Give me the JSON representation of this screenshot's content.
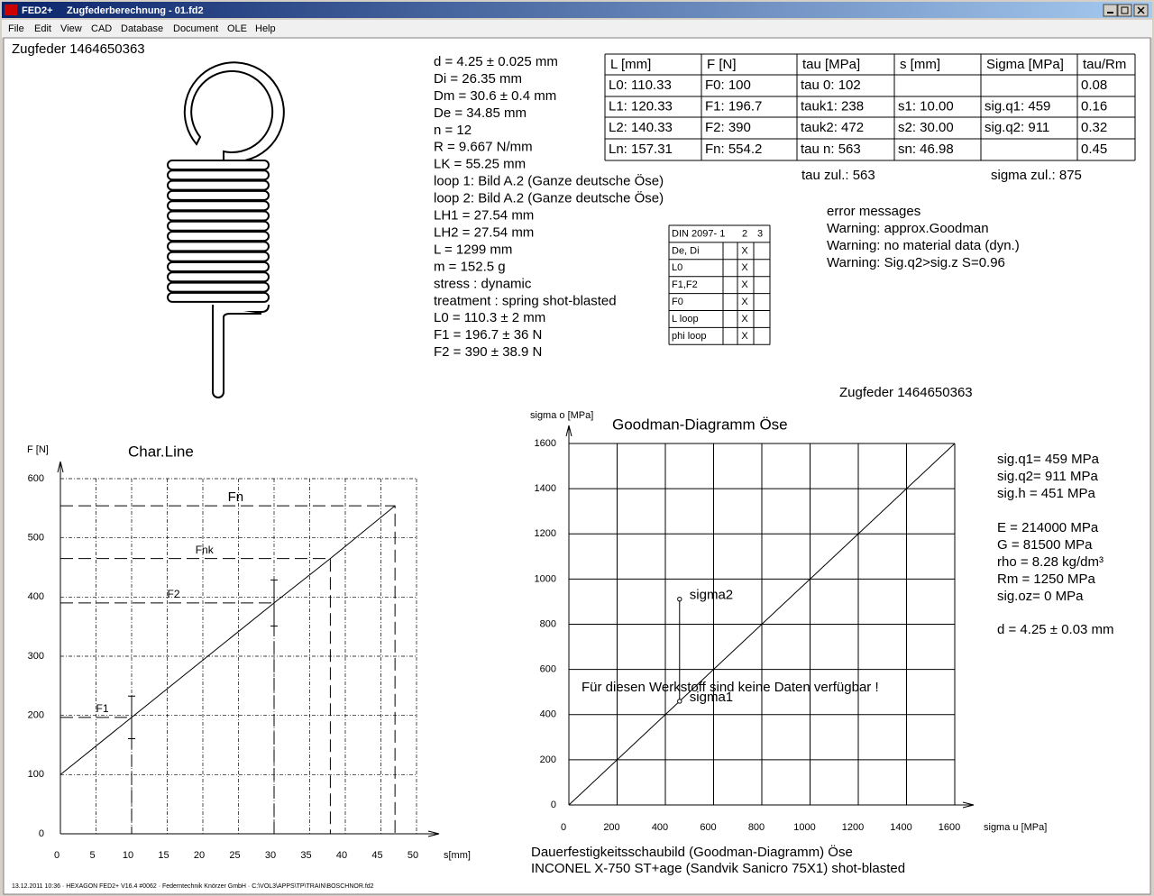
{
  "window": {
    "app": "FED2+",
    "title": "Zugfederberechnung  -  01.fd2"
  },
  "menu": [
    "File",
    "Edit",
    "View",
    "CAD",
    "Database",
    "Document",
    "OLE",
    "Help"
  ],
  "spring_label": "Zugfeder  1464650363",
  "parameters": [
    "d = 4.25 ± 0.025 mm",
    "Di = 26.35 mm",
    "Dm = 30.6 ± 0.4 mm",
    "De = 34.85 mm",
    "n = 12",
    "R = 9.667 N/mm",
    "LK = 55.25 mm",
    "loop 1: Bild A.2 (Ganze deutsche Öse)",
    "loop 2: Bild A.2 (Ganze deutsche Öse)",
    "LH1 = 27.54 mm",
    "LH2 = 27.54 mm",
    "L = 1299 mm",
    "m = 152.5 g",
    "stress : dynamic",
    "treatment : spring shot-blasted",
    "L0 = 110.3 ± 2 mm",
    "F1 = 196.7 ± 36 N",
    "F2 = 390 ± 38.9 N"
  ],
  "results_table": {
    "header": [
      "L [mm]",
      "F [N]",
      "tau [MPa]",
      "s [mm]",
      "Sigma [MPa]",
      "tau/Rm"
    ],
    "rows": [
      [
        "L0: 110.33",
        "F0: 100",
        "tau 0:  102",
        null,
        null,
        "0.08"
      ],
      [
        "L1: 120.33",
        "F1: 196.7",
        "tauk1:  238",
        "s1:  10.00",
        "sig.q1:  459",
        "0.16"
      ],
      [
        "L2: 140.33",
        "F2: 390",
        "tauk2:  472",
        "s2:  30.00",
        "sig.q2:  911",
        "0.32"
      ],
      [
        "Ln: 157.31",
        "Fn: 554.2",
        "tau n:  563",
        "sn:  46.98",
        null,
        "0.45"
      ]
    ]
  },
  "tau_zul": "tau zul.: 563",
  "sigma_zul": "sigma zul.: 875",
  "messages": [
    "error messages",
    "Warning: approx.Goodman",
    "Warning: no material data (dyn.)",
    "Warning: Sig.q2>sig.z S=0.96"
  ],
  "din_table": {
    "header": [
      "DIN 2097- 1",
      "2",
      "3"
    ],
    "rows": [
      {
        "label": "De, Di",
        "mark": "X"
      },
      {
        "label": "L0",
        "mark": "X"
      },
      {
        "label": "F1,F2",
        "mark": "X"
      },
      {
        "label": "F0",
        "mark": "X"
      },
      {
        "label": "L loop",
        "mark": "X"
      },
      {
        "label": "phi loop",
        "mark": "X"
      }
    ]
  },
  "goodman_label": "Zugfeder  1464650363",
  "char_line": {
    "type": "line",
    "title": "Char.Line",
    "x_label": "s[mm]",
    "y_label": "F [N]",
    "xlim": [
      0,
      50
    ],
    "ylim": [
      0,
      600
    ],
    "xticks": [
      0,
      5,
      10,
      15,
      20,
      25,
      30,
      35,
      40,
      45,
      50
    ],
    "yticks": [
      0,
      100,
      200,
      300,
      400,
      500,
      600
    ],
    "grid": true,
    "x": [
      0,
      10,
      30,
      37.9,
      46.98
    ],
    "values": [
      100,
      196.7,
      390,
      465,
      554.2
    ],
    "errors": [
      null,
      36,
      38.9,
      null,
      null
    ],
    "point_labels": [
      null,
      "F1",
      "F2",
      "Fnk",
      "Fn"
    ]
  },
  "goodman": {
    "type": "scatter",
    "title": "Goodman-Diagramm Öse",
    "x_label": "sigma u [MPa]",
    "y_label": "sigma o [MPa]",
    "xlim": [
      0,
      1600
    ],
    "ylim": [
      0,
      1600
    ],
    "xticks": [
      0,
      200,
      400,
      600,
      800,
      1000,
      1200,
      1400,
      1600
    ],
    "yticks": [
      0,
      200,
      400,
      600,
      800,
      1000,
      1200,
      1400,
      1600
    ],
    "grid": true,
    "line": {
      "x": [
        0,
        1600
      ],
      "values": [
        0,
        1600
      ]
    },
    "x": [
      459,
      459
    ],
    "values": [
      459,
      911
    ],
    "point_labels": [
      "sigma1",
      "sigma2"
    ],
    "note": "Für diesen Werkstoff sind keine Daten verfügbar !"
  },
  "material_values": [
    "sig.q1=  459 MPa",
    "sig.q2=  911 MPa",
    "sig.h =  451 MPa",
    "E = 214000 MPa",
    "G =  81500 MPa",
    "rho =  8.28 kg/dm³",
    "Rm = 1250 MPa",
    "sig.oz=    0 MPa",
    "d  = 4.25 ± 0.03 mm"
  ],
  "captions": [
    "Dauerfestigkeitsschaubild (Goodman-Diagramm) Öse",
    "INCONEL X-750 ST+age (Sandvik Sanicro 75X1) shot-blasted"
  ],
  "status": "13.12.2011 10:36 · HEXAGON FED2+ V16.4 #0062 · Federntechnik Knörzer GmbH · C:\\VOL3\\APPS\\TP\\TRAIN\\BOSCHNOR.fd2"
}
